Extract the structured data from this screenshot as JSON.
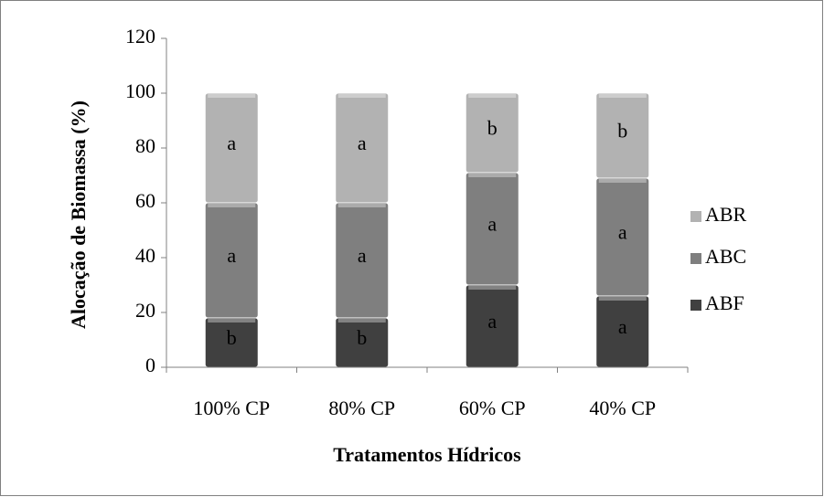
{
  "chart_data": {
    "type": "stacked_bar",
    "ylabel": "Alocação de  Biomassa (%)",
    "xlabel": "Tratamentos Hídricos",
    "categories": [
      "100% CP",
      "80% CP",
      "60% CP",
      "40% CP"
    ],
    "series": [
      {
        "name": "ABF",
        "color": "#404040",
        "values": [
          18,
          18,
          30,
          26
        ],
        "letters": [
          "b",
          "b",
          "a",
          "a"
        ]
      },
      {
        "name": "ABC",
        "color": "#7f7f7f",
        "values": [
          42,
          42,
          41,
          43
        ],
        "letters": [
          "a",
          "a",
          "a",
          "a"
        ]
      },
      {
        "name": "ABR",
        "color": "#b2b2b2",
        "values": [
          40,
          40,
          29,
          31
        ],
        "letters": [
          "a",
          "a",
          "b",
          "b"
        ]
      }
    ],
    "ylim": [
      0,
      120
    ],
    "yticks": [
      0,
      20,
      40,
      60,
      80,
      100,
      120
    ],
    "legend": "right"
  }
}
